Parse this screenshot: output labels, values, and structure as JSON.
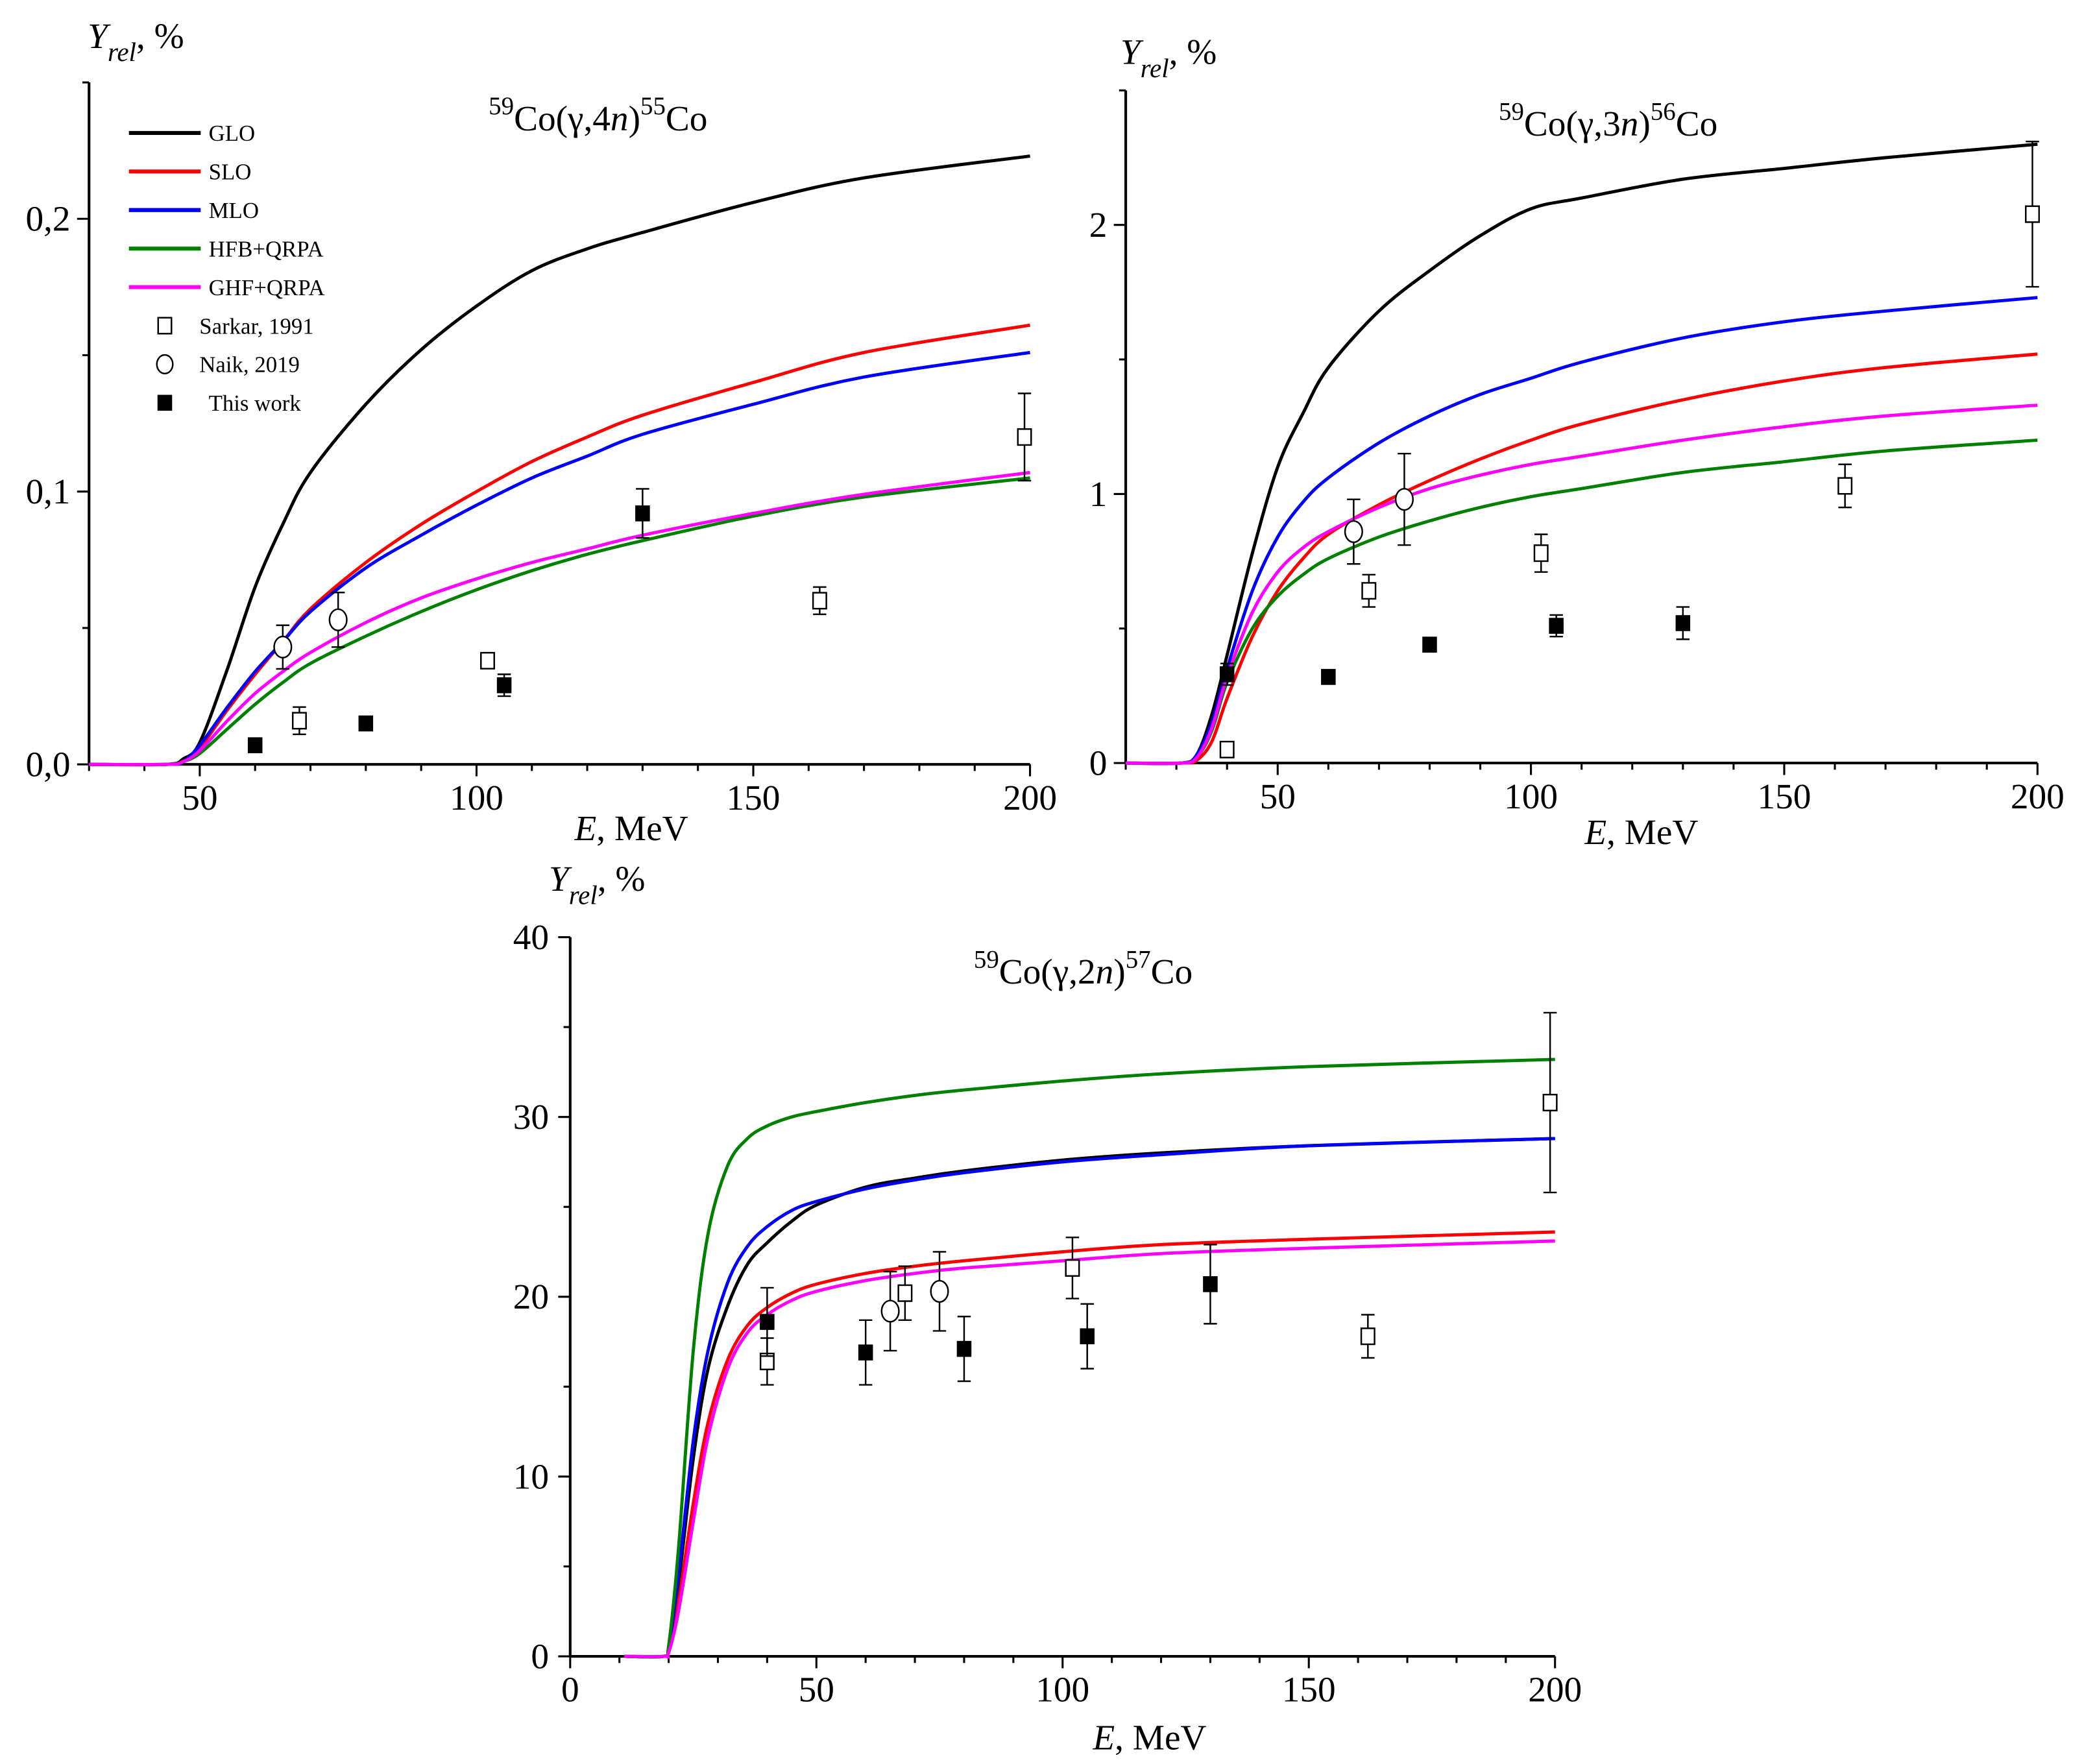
{
  "figure": {
    "legend": {
      "items": [
        {
          "label": "GLO",
          "kind": "line",
          "color": "#000000"
        },
        {
          "label": "SLO",
          "kind": "line",
          "color": "#ff0000"
        },
        {
          "label": "MLO",
          "kind": "line",
          "color": "#0000ff"
        },
        {
          "label": "HFB+QRPA",
          "kind": "line",
          "color": "#008000"
        },
        {
          "label": "GHF+QRPA",
          "kind": "line",
          "color": "#ff00ff"
        },
        {
          "label": "Sarkar, 1991",
          "kind": "open-square",
          "color": "#000000"
        },
        {
          "label": "Naik, 2019",
          "kind": "open-circle",
          "color": "#000000"
        },
        {
          "label": "This work",
          "kind": "filled-square",
          "color": "#000000"
        }
      ]
    }
  },
  "chart_data": [
    {
      "type": "line",
      "title": {
        "pre_sup": "59",
        "main": "Co(γ,4",
        "italic": "n",
        "close": ")",
        "post_sup": "55",
        "tail": "Co"
      },
      "xlabel": {
        "italic": "E",
        "rest": ", MeV"
      },
      "ylabel": {
        "italic": "Y",
        "sub": "rel",
        "rest": ", %"
      },
      "xlim": [
        30,
        200
      ],
      "ylim": [
        0,
        0.25
      ],
      "xticks": [
        50,
        100,
        150,
        200
      ],
      "xtick_labels": [
        "50",
        "100",
        "150",
        "200"
      ],
      "xminor": 10,
      "yticks": [
        0,
        0.1,
        0.2
      ],
      "ytick_labels": [
        "0,0",
        "0,1",
        "0,2"
      ],
      "yminor": 0.05,
      "legend_position": "top-left",
      "grid": false,
      "series": [
        {
          "name": "GLO",
          "color": "#000000",
          "x": [
            30,
            44,
            47,
            50,
            55,
            60,
            65,
            70,
            80,
            90,
            100,
            110,
            120,
            130,
            150,
            170,
            200
          ],
          "y": [
            0,
            0,
            0.002,
            0.008,
            0.035,
            0.065,
            0.088,
            0.107,
            0.132,
            0.152,
            0.168,
            0.181,
            0.189,
            0.195,
            0.206,
            0.215,
            0.223
          ]
        },
        {
          "name": "SLO",
          "color": "#ff0000",
          "x": [
            30,
            44,
            47,
            50,
            55,
            60,
            65,
            70,
            80,
            90,
            100,
            110,
            120,
            130,
            150,
            170,
            200
          ],
          "y": [
            0,
            0,
            0.001,
            0.006,
            0.02,
            0.033,
            0.045,
            0.057,
            0.074,
            0.088,
            0.1,
            0.111,
            0.12,
            0.128,
            0.14,
            0.151,
            0.161
          ]
        },
        {
          "name": "MLO",
          "color": "#0000ff",
          "x": [
            30,
            44,
            47,
            50,
            55,
            60,
            65,
            70,
            80,
            90,
            100,
            110,
            120,
            130,
            150,
            170,
            200
          ],
          "y": [
            0,
            0,
            0.001,
            0.007,
            0.021,
            0.034,
            0.045,
            0.056,
            0.072,
            0.084,
            0.095,
            0.105,
            0.113,
            0.121,
            0.132,
            0.142,
            0.151
          ]
        },
        {
          "name": "HFB+QRPA",
          "color": "#008000",
          "x": [
            30,
            44,
            47,
            50,
            55,
            60,
            65,
            70,
            80,
            90,
            100,
            110,
            120,
            130,
            150,
            170,
            200
          ],
          "y": [
            0,
            0,
            0.001,
            0.004,
            0.013,
            0.022,
            0.03,
            0.037,
            0.047,
            0.056,
            0.064,
            0.071,
            0.077,
            0.082,
            0.091,
            0.098,
            0.105
          ]
        },
        {
          "name": "GHF+QRPA",
          "color": "#ff00ff",
          "x": [
            30,
            44,
            47,
            50,
            55,
            60,
            65,
            70,
            80,
            90,
            100,
            110,
            120,
            130,
            150,
            170,
            200
          ],
          "y": [
            0,
            0,
            0.001,
            0.005,
            0.016,
            0.026,
            0.034,
            0.041,
            0.052,
            0.061,
            0.068,
            0.074,
            0.079,
            0.084,
            0.092,
            0.099,
            0.107
          ]
        }
      ],
      "points": [
        {
          "name": "Sarkar, 1991",
          "marker": "open-square",
          "x": [
            68,
            102,
            162,
            199
          ],
          "y": [
            0.016,
            0.038,
            0.06,
            0.12
          ],
          "err": [
            0.005,
            0,
            0.005,
            0.016
          ]
        },
        {
          "name": "Naik, 2019",
          "marker": "open-circle",
          "x": [
            65,
            75
          ],
          "y": [
            0.043,
            0.053
          ],
          "err": [
            0.008,
            0.01
          ]
        },
        {
          "name": "This work",
          "marker": "filled-square",
          "x": [
            60,
            80,
            105,
            130
          ],
          "y": [
            0.007,
            0.015,
            0.029,
            0.092
          ],
          "err": [
            0,
            0,
            0.004,
            0.009
          ]
        }
      ]
    },
    {
      "type": "line",
      "title": {
        "pre_sup": "59",
        "main": "Co(γ,3",
        "italic": "n",
        "close": ")",
        "post_sup": "56",
        "tail": "Co"
      },
      "xlabel": {
        "italic": "E",
        "rest": ", MeV"
      },
      "ylabel": {
        "italic": "Y",
        "sub": "rel",
        "rest": ", %"
      },
      "xlim": [
        20,
        200
      ],
      "ylim": [
        0,
        2.5
      ],
      "xticks": [
        50,
        100,
        150,
        200
      ],
      "xtick_labels": [
        "50",
        "100",
        "150",
        "200"
      ],
      "xminor": 10,
      "yticks": [
        0,
        1,
        2
      ],
      "ytick_labels": [
        "0",
        "1",
        "2"
      ],
      "yminor": 0.5,
      "grid": false,
      "series": [
        {
          "name": "GLO",
          "color": "#000000",
          "x": [
            20,
            31,
            34,
            37,
            40,
            45,
            50,
            55,
            60,
            70,
            80,
            90,
            100,
            110,
            130,
            150,
            170,
            200
          ],
          "y": [
            0,
            0,
            0.03,
            0.18,
            0.4,
            0.78,
            1.1,
            1.3,
            1.47,
            1.68,
            1.83,
            1.96,
            2.06,
            2.1,
            2.17,
            2.21,
            2.25,
            2.3
          ]
        },
        {
          "name": "SLO",
          "color": "#ff0000",
          "x": [
            20,
            31,
            34,
            37,
            40,
            45,
            50,
            55,
            60,
            70,
            80,
            90,
            100,
            110,
            130,
            150,
            170,
            200
          ],
          "y": [
            0,
            0,
            0.01,
            0.08,
            0.24,
            0.47,
            0.64,
            0.76,
            0.85,
            0.96,
            1.05,
            1.13,
            1.2,
            1.26,
            1.35,
            1.42,
            1.47,
            1.52
          ]
        },
        {
          "name": "MLO",
          "color": "#0000ff",
          "x": [
            20,
            31,
            34,
            37,
            40,
            45,
            50,
            55,
            60,
            70,
            80,
            90,
            100,
            110,
            130,
            150,
            170,
            200
          ],
          "y": [
            0,
            0,
            0.03,
            0.15,
            0.35,
            0.64,
            0.84,
            0.97,
            1.06,
            1.19,
            1.29,
            1.37,
            1.43,
            1.49,
            1.58,
            1.64,
            1.68,
            1.73
          ]
        },
        {
          "name": "HFB+QRPA",
          "color": "#008000",
          "x": [
            20,
            31,
            34,
            37,
            40,
            45,
            50,
            55,
            60,
            70,
            80,
            90,
            100,
            110,
            130,
            150,
            170,
            200
          ],
          "y": [
            0,
            0,
            0.02,
            0.12,
            0.3,
            0.5,
            0.62,
            0.7,
            0.76,
            0.84,
            0.9,
            0.95,
            0.99,
            1.02,
            1.08,
            1.12,
            1.16,
            1.2
          ]
        },
        {
          "name": "GHF+QRPA",
          "color": "#ff00ff",
          "x": [
            20,
            31,
            34,
            37,
            40,
            45,
            50,
            55,
            60,
            70,
            80,
            90,
            100,
            110,
            130,
            150,
            170,
            200
          ],
          "y": [
            0,
            0,
            0.02,
            0.13,
            0.32,
            0.56,
            0.71,
            0.8,
            0.86,
            0.95,
            1.02,
            1.07,
            1.11,
            1.14,
            1.2,
            1.25,
            1.29,
            1.33
          ]
        }
      ],
      "points": [
        {
          "name": "Sarkar, 1991",
          "marker": "open-square",
          "x": [
            40,
            68,
            102,
            162,
            199
          ],
          "y": [
            0.05,
            0.64,
            0.78,
            1.03,
            2.04
          ],
          "err": [
            0.02,
            0.06,
            0.07,
            0.08,
            0.27
          ]
        },
        {
          "name": "Naik, 2019",
          "marker": "open-circle",
          "x": [
            65,
            75
          ],
          "y": [
            0.86,
            0.98
          ],
          "err": [
            0.12,
            0.17
          ]
        },
        {
          "name": "This work",
          "marker": "filled-square",
          "x": [
            40,
            60,
            80,
            105,
            130
          ],
          "y": [
            0.33,
            0.32,
            0.44,
            0.51,
            0.52
          ],
          "err": [
            0.04,
            0.02,
            0,
            0.04,
            0.06
          ]
        }
      ]
    },
    {
      "type": "line",
      "title": {
        "pre_sup": "59",
        "main": "Co(γ,2",
        "italic": "n",
        "close": ")",
        "post_sup": "57",
        "tail": "Co"
      },
      "xlabel": {
        "italic": "E",
        "rest": ", MeV"
      },
      "ylabel": {
        "italic": "Y",
        "sub": "rel",
        "rest": ", %"
      },
      "xlim": [
        0,
        200
      ],
      "ylim": [
        0,
        40
      ],
      "xticks": [
        0,
        50,
        100,
        150,
        200
      ],
      "xtick_labels": [
        "0",
        "50",
        "100",
        "150",
        "200"
      ],
      "xminor": 10,
      "yticks": [
        0,
        10,
        20,
        30,
        40
      ],
      "ytick_labels": [
        "0",
        "10",
        "20",
        "30",
        "40"
      ],
      "yminor": 5,
      "grid": false,
      "series": [
        {
          "name": "GLO",
          "color": "#000000",
          "x": [
            11,
            19,
            20,
            22,
            25,
            28,
            32,
            36,
            40,
            45,
            50,
            60,
            70,
            80,
            100,
            120,
            150,
            200
          ],
          "y": [
            0,
            0,
            0.5,
            4,
            11,
            16,
            19.5,
            21.8,
            23,
            24.2,
            25.1,
            26.1,
            26.6,
            27,
            27.6,
            28,
            28.4,
            28.8
          ]
        },
        {
          "name": "SLO",
          "color": "#ff0000",
          "x": [
            11,
            19,
            20,
            22,
            25,
            28,
            32,
            36,
            40,
            45,
            50,
            60,
            70,
            80,
            100,
            120,
            150,
            200
          ],
          "y": [
            0,
            0,
            0.3,
            3,
            8.5,
            13,
            16.5,
            18.4,
            19.4,
            20.2,
            20.7,
            21.3,
            21.7,
            22,
            22.5,
            22.9,
            23.2,
            23.6
          ]
        },
        {
          "name": "MLO",
          "color": "#0000ff",
          "x": [
            11,
            19,
            20,
            22,
            25,
            28,
            32,
            36,
            40,
            45,
            50,
            60,
            70,
            80,
            100,
            120,
            150,
            200
          ],
          "y": [
            0,
            0,
            0.5,
            4.5,
            12,
            17,
            20.8,
            22.8,
            23.9,
            24.8,
            25.3,
            26,
            26.5,
            26.9,
            27.5,
            27.9,
            28.4,
            28.8
          ]
        },
        {
          "name": "HFB+QRPA",
          "color": "#008000",
          "x": [
            11,
            19,
            20,
            22,
            25,
            28,
            32,
            36,
            40,
            45,
            50,
            60,
            70,
            80,
            100,
            120,
            150,
            200
          ],
          "y": [
            0,
            0,
            0.6,
            6,
            17,
            23.5,
            27.3,
            28.8,
            29.5,
            30,
            30.3,
            30.8,
            31.2,
            31.5,
            32,
            32.4,
            32.8,
            33.2
          ]
        },
        {
          "name": "GHF+QRPA",
          "color": "#ff00ff",
          "x": [
            11,
            19,
            20,
            22,
            25,
            28,
            32,
            36,
            40,
            45,
            50,
            60,
            70,
            80,
            100,
            120,
            150,
            200
          ],
          "y": [
            0,
            0,
            0.2,
            2.5,
            7.5,
            12.2,
            16,
            18,
            19,
            19.8,
            20.3,
            20.9,
            21.3,
            21.6,
            22,
            22.4,
            22.7,
            23.1
          ]
        }
      ],
      "points": [
        {
          "name": "Sarkar, 1991",
          "marker": "open-square",
          "x": [
            40,
            68,
            102,
            162,
            199
          ],
          "y": [
            16.4,
            20.2,
            21.6,
            17.8,
            30.8
          ],
          "err": [
            1.3,
            1.5,
            1.7,
            1.2,
            5.0
          ]
        },
        {
          "name": "Naik, 2019",
          "marker": "open-circle",
          "x": [
            65,
            75
          ],
          "y": [
            19.2,
            20.3
          ],
          "err": [
            2.2,
            2.2
          ]
        },
        {
          "name": "This work",
          "marker": "filled-square",
          "x": [
            40,
            60,
            80,
            105,
            130
          ],
          "y": [
            18.6,
            16.9,
            17.1,
            17.8,
            20.7
          ],
          "err": [
            1.9,
            1.8,
            1.8,
            1.8,
            2.2
          ]
        }
      ]
    }
  ]
}
